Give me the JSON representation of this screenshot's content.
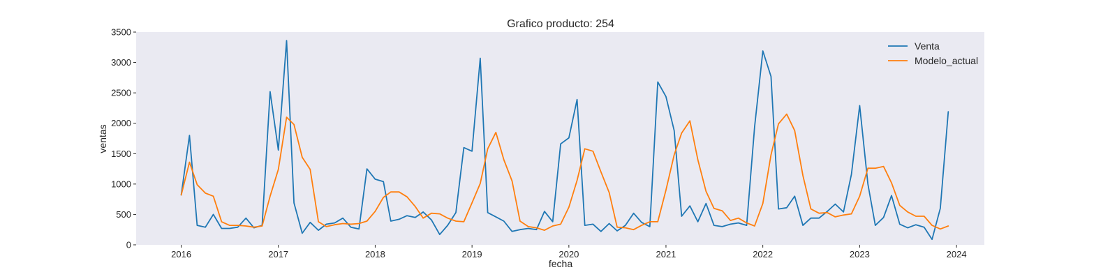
{
  "chart_data": {
    "type": "line",
    "title": "Grafico producto: 254",
    "xlabel": "fecha",
    "ylabel": "ventas",
    "xlim": [
      "2015-07-15",
      "2024-04-15"
    ],
    "ylim": [
      0,
      3500
    ],
    "x_ticks": [
      "2016",
      "2017",
      "2018",
      "2019",
      "2020",
      "2021",
      "2022",
      "2023",
      "2024"
    ],
    "y_ticks": [
      0,
      500,
      1000,
      1500,
      2000,
      2500,
      3000,
      3500
    ],
    "grid": false,
    "legend_position": "upper-right",
    "background": "#eaeaf2",
    "x": [
      "2016-01",
      "2016-02",
      "2016-03",
      "2016-04",
      "2016-05",
      "2016-06",
      "2016-07",
      "2016-08",
      "2016-09",
      "2016-10",
      "2016-11",
      "2016-12",
      "2017-01",
      "2017-02",
      "2017-03",
      "2017-04",
      "2017-05",
      "2017-06",
      "2017-07",
      "2017-08",
      "2017-09",
      "2017-10",
      "2017-11",
      "2017-12",
      "2018-01",
      "2018-02",
      "2018-03",
      "2018-04",
      "2018-05",
      "2018-06",
      "2018-07",
      "2018-08",
      "2018-09",
      "2018-10",
      "2018-11",
      "2018-12",
      "2019-01",
      "2019-02",
      "2019-03",
      "2019-04",
      "2019-05",
      "2019-06",
      "2019-07",
      "2019-08",
      "2019-09",
      "2019-10",
      "2019-11",
      "2019-12",
      "2020-01",
      "2020-02",
      "2020-03",
      "2020-04",
      "2020-05",
      "2020-06",
      "2020-07",
      "2020-08",
      "2020-09",
      "2020-10",
      "2020-11",
      "2020-12",
      "2021-01",
      "2021-02",
      "2021-03",
      "2021-04",
      "2021-05",
      "2021-06",
      "2021-07",
      "2021-08",
      "2021-09",
      "2021-10",
      "2021-11",
      "2021-12",
      "2022-01",
      "2022-02",
      "2022-03",
      "2022-04",
      "2022-05",
      "2022-06",
      "2022-07",
      "2022-08",
      "2022-09",
      "2022-10",
      "2022-11",
      "2022-12",
      "2023-01",
      "2023-02",
      "2023-03",
      "2023-04",
      "2023-05",
      "2023-06",
      "2023-07",
      "2023-08",
      "2023-09",
      "2023-10",
      "2023-11",
      "2023-12"
    ],
    "series": [
      {
        "name": "Venta",
        "color": "#1f77b4",
        "values": [
          820,
          1800,
          320,
          290,
          500,
          270,
          270,
          290,
          440,
          280,
          320,
          2520,
          1560,
          3360,
          690,
          190,
          370,
          240,
          340,
          360,
          440,
          290,
          260,
          1250,
          1080,
          1040,
          390,
          420,
          480,
          450,
          540,
          410,
          170,
          320,
          530,
          1600,
          1540,
          3070,
          530,
          460,
          390,
          220,
          250,
          270,
          250,
          550,
          380,
          1660,
          1760,
          2390,
          320,
          340,
          220,
          350,
          230,
          320,
          520,
          370,
          300,
          2680,
          2440,
          1880,
          470,
          640,
          380,
          680,
          320,
          300,
          340,
          360,
          320,
          1940,
          3190,
          2770,
          590,
          610,
          800,
          320,
          440,
          440,
          550,
          670,
          540,
          1160,
          2290,
          1000,
          320,
          450,
          810,
          340,
          280,
          330,
          290,
          90,
          600,
          2190
        ]
      },
      {
        "name": "Modelo_actual",
        "color": "#ff7f0e",
        "values": [
          820,
          1360,
          990,
          850,
          800,
          380,
          320,
          320,
          310,
          290,
          310,
          800,
          1240,
          2100,
          1980,
          1440,
          1240,
          380,
          300,
          330,
          350,
          340,
          350,
          390,
          550,
          780,
          870,
          870,
          790,
          630,
          440,
          520,
          510,
          440,
          390,
          380,
          690,
          1010,
          1580,
          1850,
          1400,
          1050,
          390,
          300,
          280,
          240,
          310,
          340,
          620,
          1060,
          1580,
          1540,
          1200,
          860,
          290,
          280,
          250,
          320,
          380,
          380,
          900,
          1480,
          1840,
          2040,
          1400,
          880,
          600,
          560,
          400,
          440,
          360,
          310,
          680,
          1480,
          1990,
          2150,
          1880,
          1140,
          590,
          520,
          530,
          460,
          490,
          510,
          800,
          1260,
          1260,
          1290,
          1020,
          650,
          540,
          470,
          470,
          320,
          260,
          310
        ]
      }
    ]
  }
}
